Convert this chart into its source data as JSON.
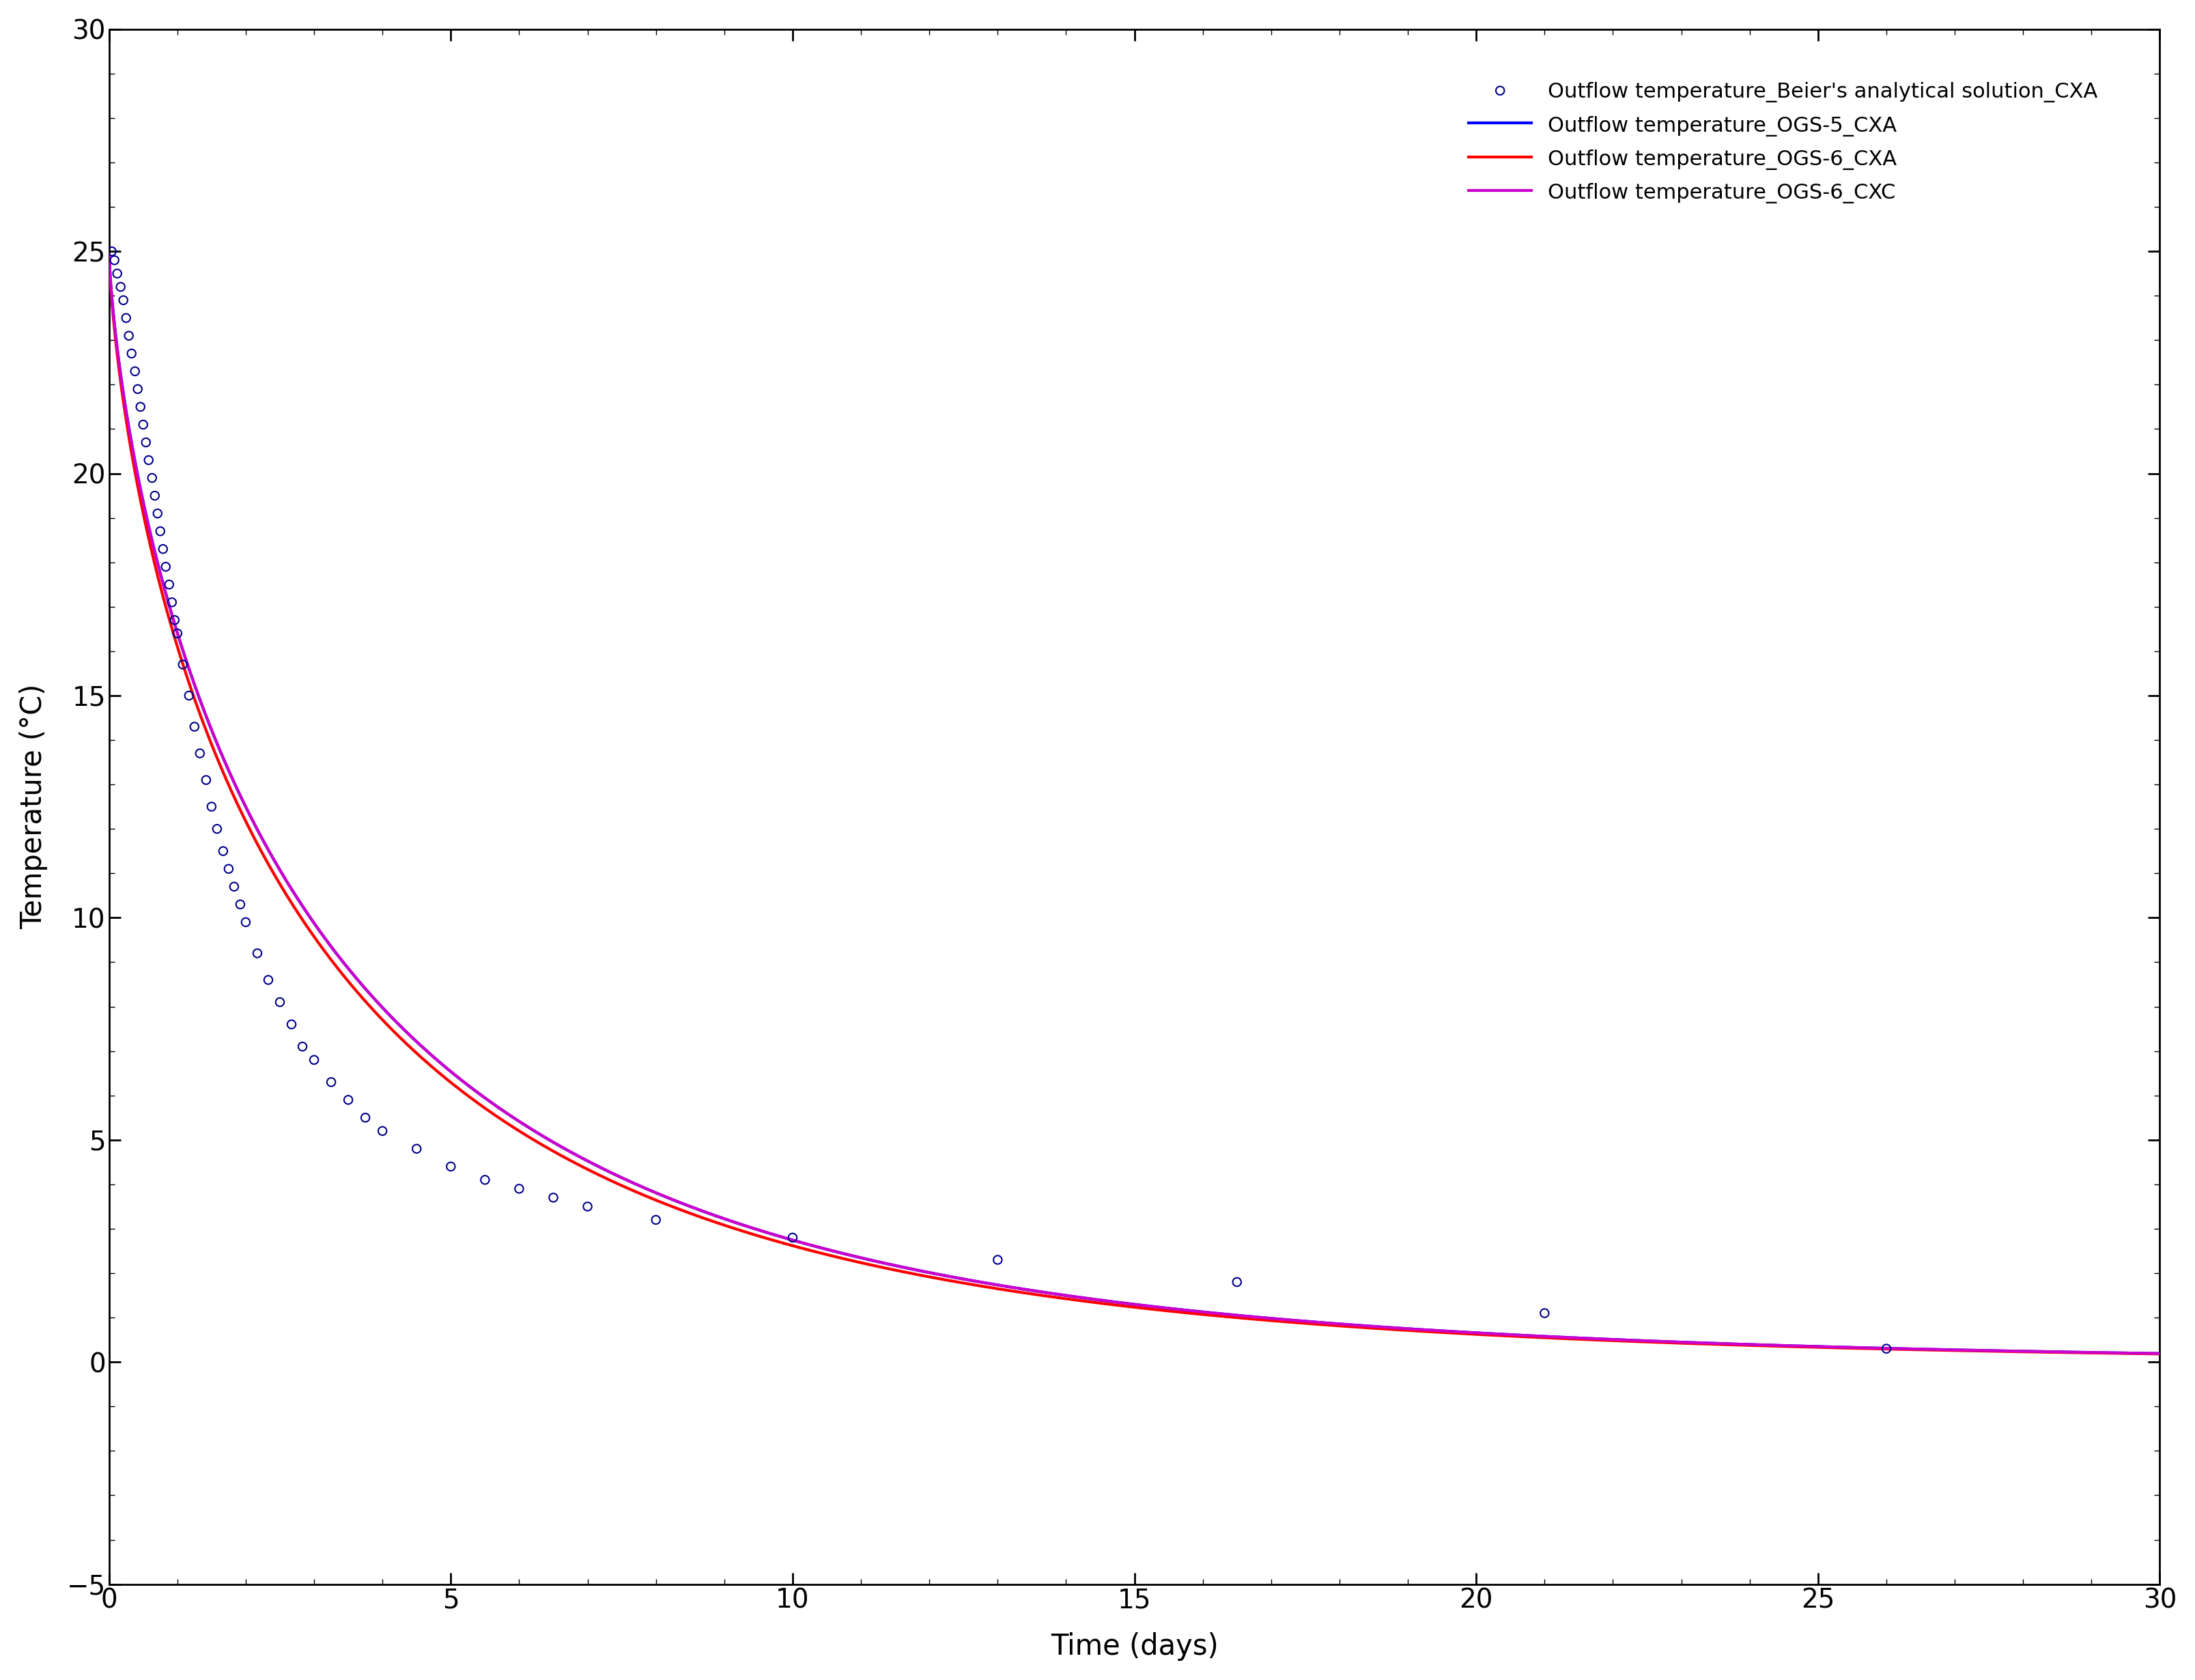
{
  "title": "",
  "xlabel": "Time (days)",
  "ylabel": "Temperature (°C)",
  "xlim": [
    0,
    30
  ],
  "ylim": [
    -5,
    30
  ],
  "xticks": [
    0,
    5,
    10,
    15,
    20,
    25,
    30
  ],
  "yticks": [
    -5,
    0,
    5,
    10,
    15,
    20,
    25,
    30
  ],
  "scatter_x": [
    0.04,
    0.08,
    0.12,
    0.17,
    0.21,
    0.25,
    0.29,
    0.33,
    0.38,
    0.42,
    0.46,
    0.5,
    0.54,
    0.58,
    0.63,
    0.67,
    0.71,
    0.75,
    0.79,
    0.83,
    0.88,
    0.92,
    0.96,
    1.0,
    1.08,
    1.17,
    1.25,
    1.33,
    1.42,
    1.5,
    1.58,
    1.67,
    1.75,
    1.83,
    1.92,
    2.0,
    2.17,
    2.33,
    2.5,
    2.67,
    2.83,
    3.0,
    3.25,
    3.5,
    3.75,
    4.0,
    4.5,
    5.0,
    5.5,
    6.0,
    6.5,
    7.0,
    8.0,
    10.0,
    13.0,
    16.5,
    21.0,
    26.0
  ],
  "scatter_y": [
    25.0,
    24.8,
    24.5,
    24.2,
    23.9,
    23.5,
    23.1,
    22.7,
    22.3,
    21.9,
    21.5,
    21.1,
    20.7,
    20.3,
    19.9,
    19.5,
    19.1,
    18.7,
    18.3,
    17.9,
    17.5,
    17.1,
    16.7,
    16.4,
    15.7,
    15.0,
    14.3,
    13.7,
    13.1,
    12.5,
    12.0,
    11.5,
    11.1,
    10.7,
    10.3,
    9.9,
    9.2,
    8.6,
    8.1,
    7.6,
    7.1,
    6.8,
    6.3,
    5.9,
    5.5,
    5.2,
    4.8,
    4.4,
    4.1,
    3.9,
    3.7,
    3.5,
    3.2,
    2.8,
    2.3,
    1.8,
    1.1,
    0.3
  ],
  "scatter_color": "#00008B",
  "scatter_label": "Outflow temperature_Beier's analytical solution_CXA",
  "line_ogs5_color": "#0000FF",
  "line_ogs6_cxa_color": "#FF0000",
  "line_ogs6_cxc_color": "#CC00CC",
  "line_ogs5_label": "Outflow temperature_OGS-5_CXA",
  "line_ogs6_cxa_label": "Outflow temperature_OGS-6_CXA",
  "line_ogs6_cxc_label": "Outflow temperature_OGS-6_CXC",
  "background_color": "#FFFFFF",
  "legend_fontsize": 22,
  "axis_label_fontsize": 30,
  "tick_fontsize": 28,
  "line_width": 3.0,
  "scatter_size": 80,
  "scatter_linewidth": 1.5
}
